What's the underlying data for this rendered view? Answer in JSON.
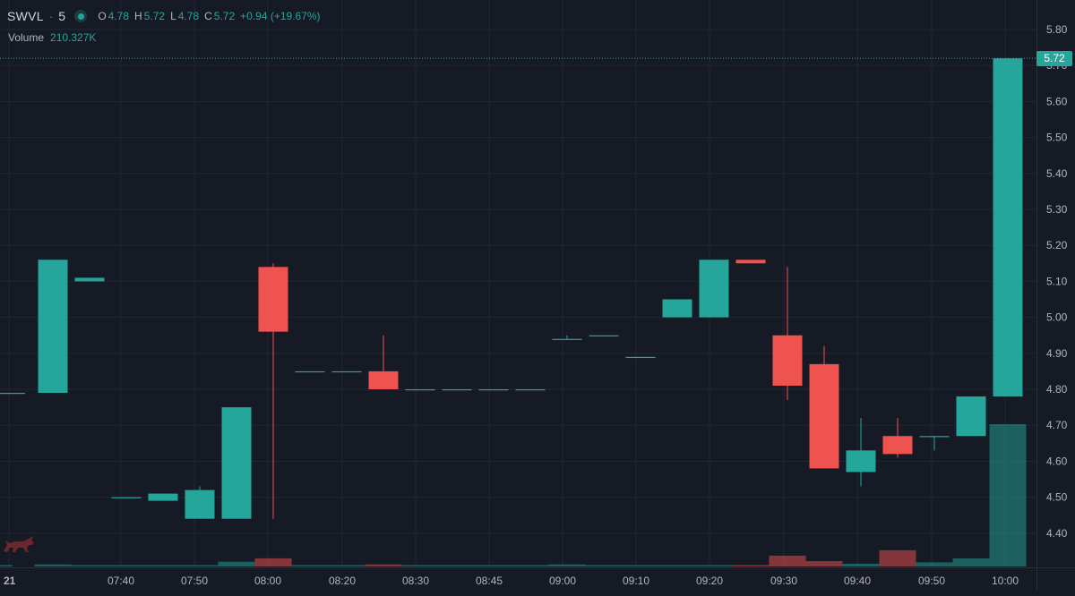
{
  "legend": {
    "symbol": "SWVL",
    "separator": "·",
    "interval": "5",
    "status_icon": "market-status-dot-icon",
    "open_label": "O",
    "open_value": "4.78",
    "high_label": "H",
    "high_value": "5.72",
    "low_label": "L",
    "low_value": "4.78",
    "close_label": "C",
    "close_value": "5.72",
    "change": "+0.94 (+19.67%)"
  },
  "volume_legend": {
    "label": "Volume",
    "value": "210.327K"
  },
  "price_axis": {
    "ticks": [
      "5.80",
      "5.70",
      "5.60",
      "5.50",
      "5.40",
      "5.30",
      "5.20",
      "5.10",
      "5.00",
      "4.90",
      "4.80",
      "4.70",
      "4.60",
      "4.50",
      "4.40"
    ],
    "last_price_label": "5.72"
  },
  "time_axis": {
    "labels": [
      "21",
      "07:40",
      "07:50",
      "08:00",
      "08:20",
      "08:30",
      "08:45",
      "09:00",
      "09:10",
      "09:20",
      "09:30",
      "09:40",
      "09:50",
      "10:00"
    ]
  },
  "colors": {
    "up": "#26a69a",
    "down": "#ef5350",
    "background": "#161a25",
    "grid": "#232632"
  },
  "logo_icon": "bull-logo-icon",
  "chart_data": {
    "type": "candlestick",
    "symbol": "SWVL",
    "interval": "5",
    "ylim": [
      4.32,
      5.83
    ],
    "candles": [
      {
        "o": 4.79,
        "h": 4.79,
        "l": 4.79,
        "c": 4.79
      },
      {
        "o": 4.79,
        "h": 5.16,
        "l": 4.79,
        "c": 5.16
      },
      {
        "o": 5.1,
        "h": 5.11,
        "l": 5.1,
        "c": 5.11
      },
      {
        "o": 4.5,
        "h": 4.5,
        "l": 4.5,
        "c": 4.5
      },
      {
        "o": 4.49,
        "h": 4.51,
        "l": 4.49,
        "c": 4.51
      },
      {
        "o": 4.44,
        "h": 4.53,
        "l": 4.44,
        "c": 4.52
      },
      {
        "o": 4.44,
        "h": 4.75,
        "l": 4.44,
        "c": 4.75
      },
      {
        "o": 5.14,
        "h": 5.15,
        "l": 4.44,
        "c": 4.96
      },
      {
        "o": 4.85,
        "h": 4.85,
        "l": 4.85,
        "c": 4.85
      },
      {
        "o": 4.85,
        "h": 4.85,
        "l": 4.85,
        "c": 4.85
      },
      {
        "o": 4.85,
        "h": 4.95,
        "l": 4.8,
        "c": 4.8
      },
      {
        "o": 4.8,
        "h": 4.8,
        "l": 4.8,
        "c": 4.8
      },
      {
        "o": 4.8,
        "h": 4.8,
        "l": 4.8,
        "c": 4.8
      },
      {
        "o": 4.8,
        "h": 4.8,
        "l": 4.8,
        "c": 4.8
      },
      {
        "o": 4.8,
        "h": 4.8,
        "l": 4.8,
        "c": 4.8
      },
      {
        "o": 4.94,
        "h": 4.95,
        "l": 4.94,
        "c": 4.94
      },
      {
        "o": 4.95,
        "h": 4.95,
        "l": 4.95,
        "c": 4.95
      },
      {
        "o": 4.89,
        "h": 4.89,
        "l": 4.89,
        "c": 4.89
      },
      {
        "o": 5.0,
        "h": 5.05,
        "l": 5.0,
        "c": 5.05
      },
      {
        "o": 5.0,
        "h": 5.16,
        "l": 5.0,
        "c": 5.16
      },
      {
        "o": 5.16,
        "h": 5.16,
        "l": 5.15,
        "c": 5.15
      },
      {
        "o": 4.95,
        "h": 5.14,
        "l": 4.77,
        "c": 4.81
      },
      {
        "o": 4.87,
        "h": 4.92,
        "l": 4.58,
        "c": 4.58
      },
      {
        "o": 4.57,
        "h": 4.72,
        "l": 4.53,
        "c": 4.63
      },
      {
        "o": 4.67,
        "h": 4.72,
        "l": 4.61,
        "c": 4.62
      },
      {
        "o": 4.67,
        "h": 4.67,
        "l": 4.63,
        "c": 4.67
      },
      {
        "o": 4.67,
        "h": 4.78,
        "l": 4.67,
        "c": 4.78
      },
      {
        "o": 4.78,
        "h": 5.72,
        "l": 4.78,
        "c": 5.72
      }
    ],
    "volume": [
      {
        "v": 2,
        "dir": "up"
      },
      {
        "v": 3,
        "dir": "up"
      },
      {
        "v": 1,
        "dir": "up"
      },
      {
        "v": 1,
        "dir": "up"
      },
      {
        "v": 1,
        "dir": "up"
      },
      {
        "v": 1,
        "dir": "up"
      },
      {
        "v": 7,
        "dir": "up"
      },
      {
        "v": 12,
        "dir": "down"
      },
      {
        "v": 1,
        "dir": "up"
      },
      {
        "v": 1,
        "dir": "up"
      },
      {
        "v": 3,
        "dir": "down"
      },
      {
        "v": 1,
        "dir": "up"
      },
      {
        "v": 1,
        "dir": "up"
      },
      {
        "v": 1,
        "dir": "up"
      },
      {
        "v": 1,
        "dir": "up"
      },
      {
        "v": 3,
        "dir": "up"
      },
      {
        "v": 1,
        "dir": "up"
      },
      {
        "v": 1,
        "dir": "up"
      },
      {
        "v": 2,
        "dir": "up"
      },
      {
        "v": 2,
        "dir": "up"
      },
      {
        "v": 2,
        "dir": "down"
      },
      {
        "v": 16,
        "dir": "down"
      },
      {
        "v": 8,
        "dir": "down"
      },
      {
        "v": 4,
        "dir": "up"
      },
      {
        "v": 24,
        "dir": "down"
      },
      {
        "v": 6,
        "dir": "up"
      },
      {
        "v": 12,
        "dir": "up"
      },
      {
        "v": 210.327,
        "dir": "up"
      }
    ],
    "volume_max": 210.327,
    "last_price": 5.72
  }
}
